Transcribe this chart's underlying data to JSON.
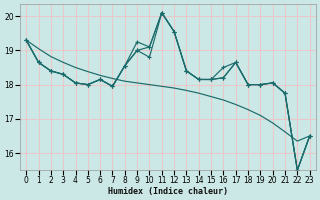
{
  "xlabel": "Humidex (Indice chaleur)",
  "bg_color": "#cce8e6",
  "grid_color": "#e8c8c8",
  "line_color": "#1a6b6b",
  "x": [
    0,
    1,
    2,
    3,
    4,
    5,
    6,
    7,
    8,
    9,
    10,
    11,
    12,
    13,
    14,
    15,
    16,
    17,
    18,
    19,
    20,
    21,
    22,
    23
  ],
  "series1": [
    19.3,
    18.65,
    18.4,
    18.3,
    18.05,
    18.0,
    18.15,
    17.95,
    18.55,
    19.25,
    19.1,
    20.1,
    19.55,
    18.4,
    18.15,
    18.15,
    18.5,
    18.65,
    18.0,
    18.0,
    18.05,
    17.75,
    15.5,
    16.5
  ],
  "series2": [
    19.3,
    18.65,
    18.4,
    18.3,
    18.05,
    18.0,
    18.15,
    17.95,
    18.55,
    19.0,
    19.1,
    20.1,
    19.55,
    18.4,
    18.15,
    18.15,
    18.2,
    18.65,
    18.0,
    18.0,
    18.05,
    17.75,
    15.5,
    16.5
  ],
  "series3": [
    19.3,
    18.65,
    18.4,
    18.3,
    18.05,
    18.0,
    18.15,
    17.95,
    18.55,
    19.0,
    18.8,
    20.1,
    19.55,
    18.4,
    18.15,
    18.15,
    18.2,
    18.65,
    18.0,
    18.0,
    18.05,
    17.75,
    15.5,
    16.5
  ],
  "smooth": [
    19.3,
    19.05,
    18.82,
    18.65,
    18.5,
    18.38,
    18.27,
    18.18,
    18.1,
    18.05,
    18.0,
    17.95,
    17.9,
    17.83,
    17.75,
    17.65,
    17.55,
    17.42,
    17.27,
    17.1,
    16.88,
    16.62,
    16.35,
    16.5
  ],
  "ylim": [
    15.5,
    20.35
  ],
  "xlim": [
    -0.5,
    23.5
  ],
  "yticks": [
    16,
    17,
    18,
    19,
    20
  ],
  "xticks": [
    0,
    1,
    2,
    3,
    4,
    5,
    6,
    7,
    8,
    9,
    10,
    11,
    12,
    13,
    14,
    15,
    16,
    17,
    18,
    19,
    20,
    21,
    22,
    23
  ]
}
